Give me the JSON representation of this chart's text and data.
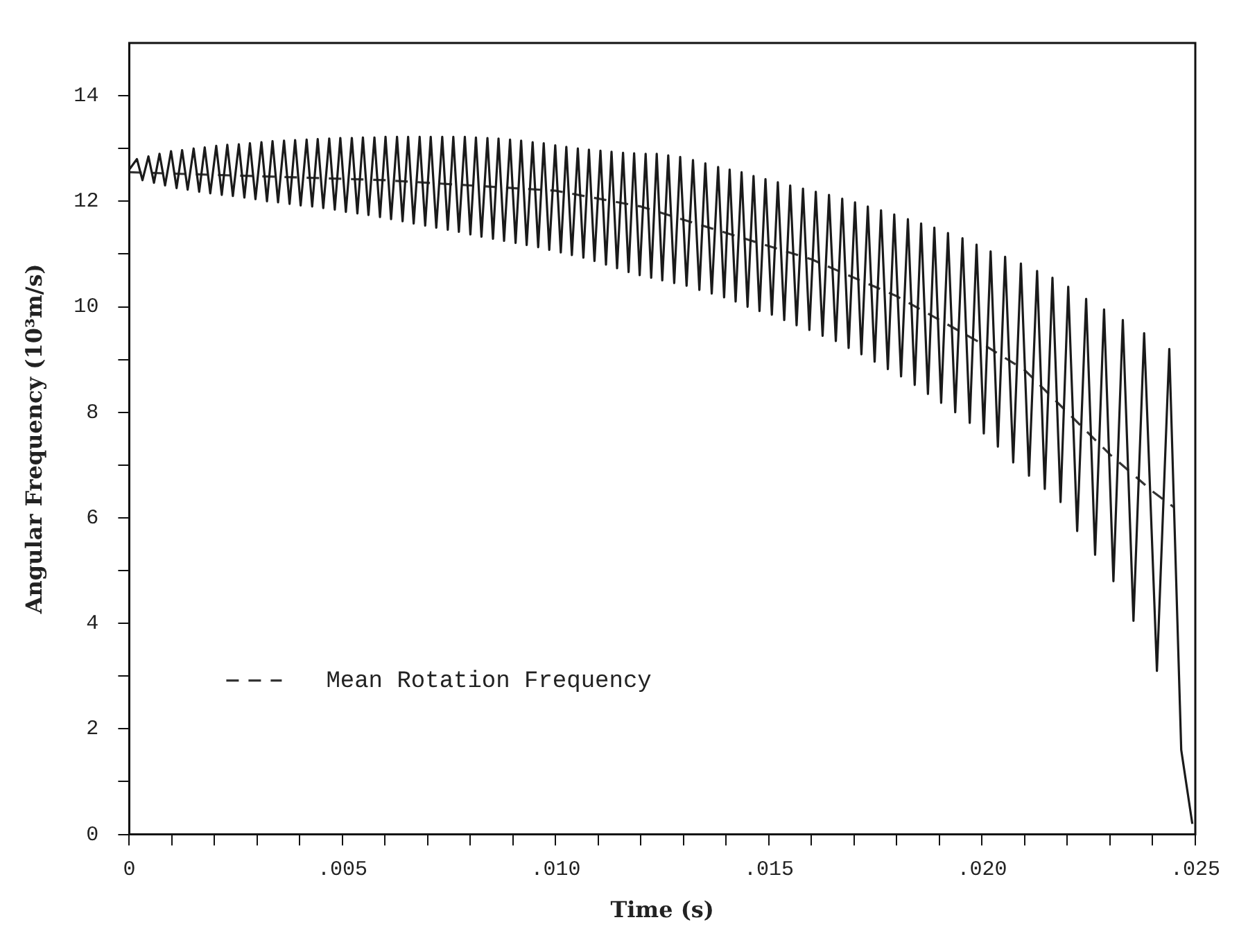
{
  "chart_data": {
    "type": "line",
    "xlabel": "Time (s)",
    "ylabel": "Angular Frequency (10³m/s)",
    "xlim": [
      0,
      0.025
    ],
    "ylim": [
      0,
      15
    ],
    "xticks": [
      0,
      {
        "value": 0.001,
        "label": null
      },
      {
        "value": 0.002,
        "label": null
      },
      {
        "value": 0.003,
        "label": null
      },
      {
        "value": 0.004,
        "label": null
      },
      {
        "value": 0.005,
        "label": ".005"
      },
      {
        "value": 0.006,
        "label": null
      },
      {
        "value": 0.007,
        "label": null
      },
      {
        "value": 0.008,
        "label": null
      },
      {
        "value": 0.009,
        "label": null
      },
      {
        "value": 0.01,
        "label": ".010"
      },
      {
        "value": 0.011,
        "label": null
      },
      {
        "value": 0.012,
        "label": null
      },
      {
        "value": 0.013,
        "label": null
      },
      {
        "value": 0.014,
        "label": null
      },
      {
        "value": 0.015,
        "label": ".015"
      },
      {
        "value": 0.016,
        "label": null
      },
      {
        "value": 0.017,
        "label": null
      },
      {
        "value": 0.018,
        "label": null
      },
      {
        "value": 0.019,
        "label": null
      },
      {
        "value": 0.02,
        "label": ".020"
      },
      {
        "value": 0.021,
        "label": null
      },
      {
        "value": 0.022,
        "label": null
      },
      {
        "value": 0.023,
        "label": null
      },
      {
        "value": 0.024,
        "label": null
      },
      {
        "value": 0.025,
        "label": ".025"
      }
    ],
    "yticks": [
      0,
      {
        "value": 1,
        "label": null
      },
      2,
      {
        "value": 3,
        "label": null
      },
      4,
      {
        "value": 5,
        "label": null
      },
      6,
      {
        "value": 7,
        "label": null
      },
      8,
      {
        "value": 9,
        "label": null
      },
      10,
      {
        "value": 11,
        "label": null
      },
      12,
      {
        "value": 13,
        "label": null
      },
      14
    ],
    "grid": false,
    "legend": "bottom left",
    "marker": "none",
    "series": [
      {
        "color": "#1a1a1a",
        "x": [
          0,
          0.00018,
          0.00031,
          0.00045,
          0.00058,
          0.00071,
          0.00084,
          0.00098,
          0.00111,
          0.00124,
          0.00137,
          0.00151,
          0.00164,
          0.00177,
          0.0019,
          0.00204,
          0.00217,
          0.0023,
          0.00243,
          0.00257,
          0.0027,
          0.00283,
          0.00296,
          0.0031,
          0.00323,
          0.00336,
          0.00349,
          0.00363,
          0.00376,
          0.00389,
          0.00402,
          0.00416,
          0.00429,
          0.00442,
          0.00455,
          0.00469,
          0.00482,
          0.00495,
          0.00508,
          0.00522,
          0.00535,
          0.00548,
          0.00561,
          0.00575,
          0.00588,
          0.00601,
          0.00614,
          0.00628,
          0.00641,
          0.00654,
          0.00667,
          0.00681,
          0.00694,
          0.00707,
          0.0072,
          0.00734,
          0.00747,
          0.0076,
          0.00773,
          0.00787,
          0.008,
          0.00813,
          0.00826,
          0.0084,
          0.00853,
          0.00866,
          0.00879,
          0.00893,
          0.00906,
          0.00919,
          0.00932,
          0.00946,
          0.00959,
          0.00972,
          0.00985,
          0.00999,
          0.01012,
          0.01025,
          0.01038,
          0.01052,
          0.01065,
          0.01078,
          0.01091,
          0.01105,
          0.01118,
          0.01131,
          0.01144,
          0.01158,
          0.01171,
          0.01184,
          0.01197,
          0.01211,
          0.01224,
          0.01237,
          0.0125,
          0.01264,
          0.01278,
          0.01292,
          0.01307,
          0.01322,
          0.01337,
          0.01351,
          0.01366,
          0.01381,
          0.01395,
          0.01408,
          0.01422,
          0.01436,
          0.0145,
          0.01464,
          0.01478,
          0.01492,
          0.01507,
          0.01521,
          0.01536,
          0.0155,
          0.01565,
          0.0158,
          0.01595,
          0.0161,
          0.01626,
          0.01641,
          0.01657,
          0.01672,
          0.01687,
          0.01702,
          0.01717,
          0.01732,
          0.01748,
          0.01763,
          0.01779,
          0.01794,
          0.0181,
          0.01826,
          0.01842,
          0.01857,
          0.01873,
          0.01888,
          0.01904,
          0.0192,
          0.01937,
          0.01954,
          0.01971,
          0.01987,
          0.02004,
          0.0202,
          0.02037,
          0.02054,
          0.02073,
          0.02091,
          0.0211,
          0.02129,
          0.02147,
          0.02165,
          0.02184,
          0.02202,
          0.02223,
          0.02244,
          0.02265,
          0.02286,
          0.02308,
          0.0233,
          0.02355,
          0.0238,
          0.0241,
          0.02439,
          0.02467,
          0.02493
        ],
        "values": [
          12.6,
          12.8,
          12.4,
          12.85,
          12.35,
          12.9,
          12.3,
          12.95,
          12.25,
          12.97,
          12.22,
          13.0,
          12.18,
          13.02,
          12.15,
          13.05,
          12.12,
          13.07,
          12.1,
          13.08,
          12.07,
          13.1,
          12.04,
          13.12,
          12.0,
          13.14,
          11.98,
          13.15,
          11.95,
          13.16,
          11.92,
          13.17,
          11.9,
          13.18,
          11.87,
          13.19,
          11.84,
          13.2,
          11.8,
          13.2,
          11.77,
          13.21,
          11.74,
          13.21,
          11.7,
          13.22,
          11.66,
          13.22,
          11.62,
          13.22,
          11.58,
          13.22,
          11.54,
          13.22,
          11.5,
          13.22,
          11.46,
          13.22,
          11.42,
          13.22,
          11.37,
          13.21,
          11.33,
          13.2,
          11.29,
          13.19,
          11.25,
          13.17,
          11.21,
          13.15,
          11.17,
          13.12,
          11.13,
          13.1,
          11.08,
          13.06,
          11.03,
          13.03,
          10.98,
          13.0,
          10.93,
          12.98,
          10.87,
          12.96,
          10.8,
          12.94,
          10.73,
          12.92,
          10.66,
          12.91,
          10.6,
          12.9,
          10.55,
          12.9,
          10.5,
          12.87,
          10.45,
          12.84,
          10.4,
          12.78,
          10.32,
          12.72,
          10.25,
          12.65,
          10.18,
          12.6,
          10.1,
          12.55,
          10.0,
          12.48,
          9.92,
          12.42,
          9.85,
          12.36,
          9.75,
          12.3,
          9.65,
          12.24,
          9.56,
          12.18,
          9.45,
          12.12,
          9.35,
          12.05,
          9.22,
          11.98,
          9.1,
          11.9,
          8.96,
          11.83,
          8.82,
          11.75,
          8.68,
          11.66,
          8.52,
          11.58,
          8.35,
          11.5,
          8.18,
          11.4,
          8.0,
          11.3,
          7.8,
          11.18,
          7.6,
          11.05,
          7.35,
          10.95,
          7.05,
          10.82,
          6.8,
          10.68,
          6.55,
          10.55,
          6.3,
          10.38,
          5.75,
          10.15,
          5.3,
          9.95,
          4.8,
          9.75,
          4.05,
          9.5,
          3.1,
          9.2,
          1.6,
          0.2
        ]
      },
      {
        "name": "Mean Rotation Frequency",
        "color": "#333333",
        "line_style": "dashed",
        "x": [
          0,
          0.002,
          0.004,
          0.006,
          0.008,
          0.01,
          0.012,
          0.014,
          0.016,
          0.018,
          0.02,
          0.021,
          0.022,
          0.023,
          0.024,
          0.0245
        ],
        "values": [
          12.55,
          12.5,
          12.45,
          12.4,
          12.3,
          12.2,
          11.9,
          11.4,
          10.9,
          10.2,
          9.3,
          8.8,
          8.0,
          7.2,
          6.5,
          6.2
        ]
      }
    ]
  }
}
